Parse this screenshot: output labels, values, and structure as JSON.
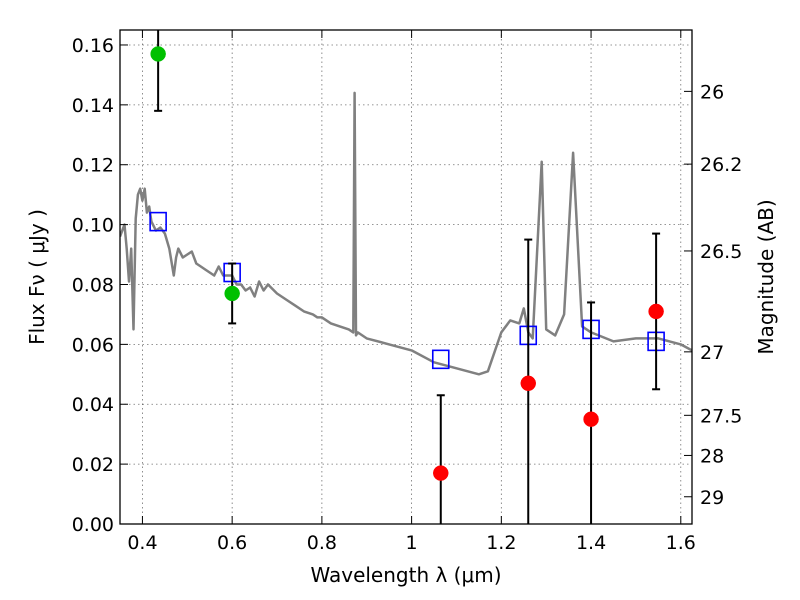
{
  "chart_data": {
    "type": "scatter",
    "xlabel": "Wavelength  λ (μm)",
    "ylabel": "Flux  Fν  ( μJy )",
    "ylabel_right": "Magnitude (AB)",
    "xlim": [
      0.35,
      1.625
    ],
    "ylim": [
      0.0,
      0.165
    ],
    "grid": true,
    "x_ticks": [
      0.4,
      0.6,
      0.8,
      1.0,
      1.2,
      1.4,
      1.6
    ],
    "x_tick_labels": [
      "0.4",
      "0.6",
      "0.8",
      "1",
      "1.2",
      "1.4",
      "1.6"
    ],
    "y_ticks": [
      0.0,
      0.02,
      0.04,
      0.06,
      0.08,
      0.1,
      0.12,
      0.14,
      0.16
    ],
    "y_tick_labels": [
      "0.00",
      "0.02",
      "0.04",
      "0.06",
      "0.08",
      "0.10",
      "0.12",
      "0.14",
      "0.16"
    ],
    "right_ticks": [
      {
        "label": "26",
        "flux": 0.1445
      },
      {
        "label": "26.2",
        "flux": 0.1202
      },
      {
        "label": "26.5",
        "flux": 0.0912
      },
      {
        "label": "27",
        "flux": 0.0575
      },
      {
        "label": "27.5",
        "flux": 0.0363
      },
      {
        "label": "28",
        "flux": 0.0229
      },
      {
        "label": "29",
        "flux": 0.0091
      }
    ],
    "series": [
      {
        "kind": "line",
        "color": "#808080",
        "x": [
          0.35,
          0.36,
          0.365,
          0.37,
          0.375,
          0.38,
          0.385,
          0.39,
          0.395,
          0.4,
          0.405,
          0.41,
          0.415,
          0.42,
          0.43,
          0.44,
          0.45,
          0.46,
          0.47,
          0.475,
          0.48,
          0.49,
          0.5,
          0.51,
          0.52,
          0.53,
          0.54,
          0.55,
          0.56,
          0.57,
          0.58,
          0.59,
          0.6,
          0.61,
          0.62,
          0.63,
          0.64,
          0.65,
          0.66,
          0.67,
          0.68,
          0.7,
          0.72,
          0.74,
          0.76,
          0.78,
          0.79,
          0.8,
          0.82,
          0.84,
          0.86,
          0.87,
          0.873,
          0.876,
          0.88,
          0.9,
          0.95,
          1.0,
          1.05,
          1.1,
          1.15,
          1.17,
          1.2,
          1.22,
          1.24,
          1.25,
          1.26,
          1.27,
          1.29,
          1.3,
          1.32,
          1.34,
          1.36,
          1.38,
          1.4,
          1.45,
          1.5,
          1.55,
          1.6,
          1.625
        ],
        "y": [
          0.096,
          0.1,
          0.092,
          0.081,
          0.092,
          0.065,
          0.102,
          0.11,
          0.112,
          0.108,
          0.112,
          0.104,
          0.106,
          0.101,
          0.098,
          0.099,
          0.097,
          0.092,
          0.083,
          0.089,
          0.092,
          0.089,
          0.09,
          0.091,
          0.087,
          0.086,
          0.085,
          0.084,
          0.083,
          0.086,
          0.083,
          0.083,
          0.083,
          0.08,
          0.08,
          0.078,
          0.079,
          0.076,
          0.081,
          0.078,
          0.08,
          0.077,
          0.075,
          0.073,
          0.071,
          0.07,
          0.069,
          0.069,
          0.067,
          0.066,
          0.065,
          0.064,
          0.144,
          0.063,
          0.064,
          0.062,
          0.06,
          0.058,
          0.054,
          0.052,
          0.05,
          0.051,
          0.064,
          0.068,
          0.067,
          0.072,
          0.064,
          0.062,
          0.121,
          0.065,
          0.063,
          0.07,
          0.124,
          0.066,
          0.064,
          0.061,
          0.062,
          0.062,
          0.06,
          0.058
        ]
      },
      {
        "kind": "square",
        "color": "#0000ff",
        "x": [
          0.435,
          0.6,
          1.065,
          1.26,
          1.4,
          1.545
        ],
        "y": [
          0.101,
          0.084,
          0.055,
          0.063,
          0.065,
          0.061
        ]
      },
      {
        "kind": "point",
        "color": "#00c000",
        "x": [
          0.435,
          0.6
        ],
        "y": [
          0.157,
          0.077
        ],
        "yerr": [
          0.019,
          0.01
        ]
      },
      {
        "kind": "point",
        "color": "#ff0000",
        "x": [
          1.065,
          1.26,
          1.4,
          1.545
        ],
        "y": [
          0.017,
          0.047,
          0.035,
          0.071
        ],
        "yerr": [
          0.026,
          0.048,
          0.039,
          0.026
        ]
      }
    ]
  }
}
